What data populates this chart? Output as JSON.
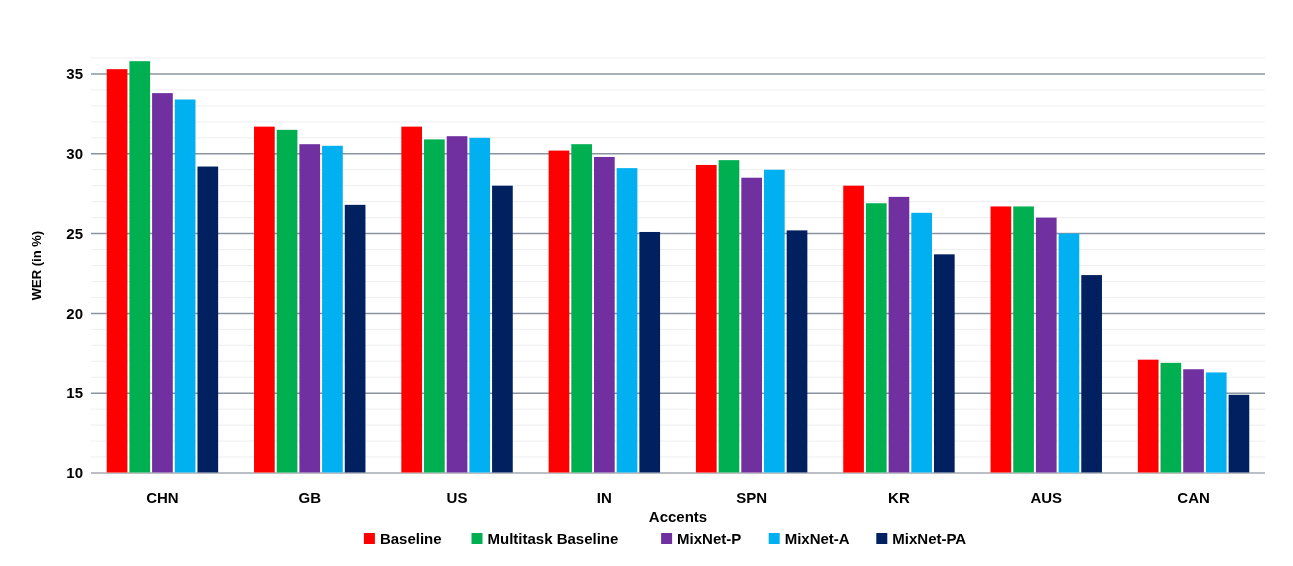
{
  "chart_data": {
    "type": "bar",
    "xlabel": "Accents",
    "ylabel": "WER (in %)",
    "categories": [
      "CHN",
      "GB",
      "US",
      "IN",
      "SPN",
      "KR",
      "AUS",
      "CAN"
    ],
    "series": [
      {
        "name": "Baseline",
        "color": "#ff0000",
        "values": [
          35.3,
          31.7,
          31.7,
          30.2,
          29.3,
          28.0,
          26.7,
          17.1
        ]
      },
      {
        "name": "Multitask Baseline",
        "color": "#00b050",
        "values": [
          35.8,
          31.5,
          30.9,
          30.6,
          29.6,
          26.9,
          26.7,
          16.9
        ]
      },
      {
        "name": "MixNet-P",
        "color": "#7030a0",
        "values": [
          33.8,
          30.6,
          31.1,
          29.8,
          28.5,
          27.3,
          26.0,
          16.5
        ]
      },
      {
        "name": "MixNet-A",
        "color": "#00b0f0",
        "values": [
          33.4,
          30.5,
          31.0,
          29.1,
          29.0,
          26.3,
          25.0,
          16.3
        ]
      },
      {
        "name": "MixNet-PA",
        "color": "#002060",
        "values": [
          29.2,
          26.8,
          28.0,
          25.1,
          25.2,
          23.7,
          22.4,
          14.9
        ]
      }
    ],
    "ylim": [
      10,
      36
    ],
    "yticks": [
      10,
      {
        "value": 11,
        "label": null
      },
      {
        "value": 12,
        "label": null
      },
      {
        "value": 13,
        "label": null
      },
      {
        "value": 14,
        "label": null
      },
      15,
      {
        "value": 16,
        "label": null
      },
      {
        "value": 17,
        "label": null
      },
      {
        "value": 18,
        "label": null
      },
      {
        "value": 19,
        "label": null
      },
      20,
      {
        "value": 21,
        "label": null
      },
      {
        "value": 22,
        "label": null
      },
      {
        "value": 23,
        "label": null
      },
      {
        "value": 24,
        "label": null
      },
      25,
      {
        "value": 26,
        "label": null
      },
      {
        "value": 27,
        "label": null
      },
      {
        "value": 28,
        "label": null
      },
      {
        "value": 29,
        "label": null
      },
      30,
      {
        "value": 31,
        "label": null
      },
      {
        "value": 32,
        "label": null
      },
      {
        "value": 33,
        "label": null
      },
      {
        "value": 34,
        "label": null
      },
      35,
      {
        "value": 36,
        "label": null
      }
    ],
    "grid": true,
    "legend": "bottom"
  }
}
